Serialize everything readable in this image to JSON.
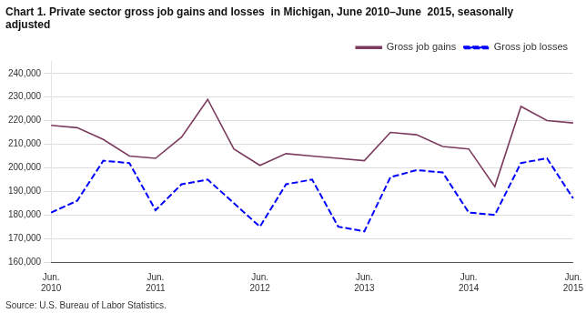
{
  "chart_data": {
    "type": "line",
    "title": "Chart 1. Private sector gross job gains and losses  in Michigan, June 2010–June  2015, seasonally adjusted",
    "subtitle": "Source: U.S. Bureau of Labor Statistics.",
    "categories": [
      "Jun.\n2010",
      null,
      null,
      null,
      "Jun.\n2011",
      null,
      null,
      null,
      "Jun.\n2012",
      null,
      null,
      null,
      "Jun.\n2013",
      null,
      null,
      null,
      "Jun.\n2014",
      null,
      null,
      null,
      "Jun.\n2015"
    ],
    "series": [
      {
        "name": "Gross job gains",
        "color": "#7B3B5E",
        "line_style": "solid",
        "values": [
          218000,
          217000,
          212000,
          205000,
          204000,
          213000,
          229000,
          208000,
          201000,
          206000,
          205000,
          204000,
          203000,
          215000,
          214000,
          209000,
          208000,
          192000,
          226000,
          220000,
          219000
        ]
      },
      {
        "name": "Gross job losses",
        "color": "#0000FF",
        "line_style": "dashed",
        "values": [
          181000,
          186000,
          203000,
          202000,
          182000,
          193000,
          195000,
          185000,
          175000,
          193000,
          195000,
          175000,
          173000,
          196000,
          199000,
          198000,
          181000,
          180000,
          202000,
          204000,
          187000
        ]
      }
    ],
    "ylim": [
      160000,
      245000
    ],
    "yticks": [
      {
        "value": 160000,
        "label": "160,000"
      },
      {
        "value": 170000,
        "label": "170,000"
      },
      {
        "value": 180000,
        "label": "180,000"
      },
      {
        "value": 190000,
        "label": "190,000"
      },
      {
        "value": 200000,
        "label": "200,000"
      },
      {
        "value": 210000,
        "label": "210,000"
      },
      {
        "value": 220000,
        "label": "220,000"
      },
      {
        "value": 230000,
        "label": "230,000"
      },
      {
        "value": 240000,
        "label": "240,000"
      }
    ],
    "grid": true,
    "legend": "upper right"
  }
}
